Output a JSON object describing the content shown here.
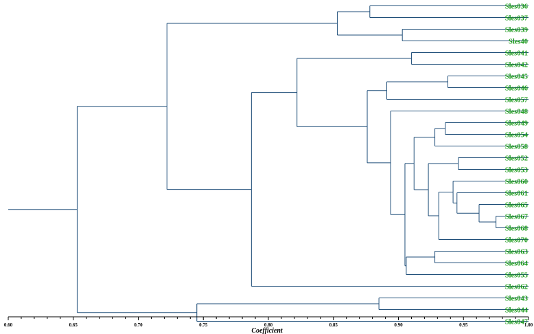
{
  "colors": {
    "branch": "#1f4e79",
    "label": "#1a9a1a",
    "axis": "#000000",
    "background": "#ffffff"
  },
  "axis": {
    "title": "Coefficient",
    "min": 0.6,
    "max": 1.0,
    "ticks": [
      "0.60",
      "0.65",
      "0.70",
      "0.75",
      "0.80",
      "0.85",
      "0.90",
      "0.95",
      "1.00"
    ],
    "minor_step": 0.01
  },
  "chart_data": {
    "type": "dendrogram",
    "title": "",
    "xlabel": "Coefficient",
    "xlim": [
      0.6,
      1.0
    ],
    "leaves": [
      "Sles036",
      "Sles037",
      "Sles039",
      "Sles40",
      "Sles041",
      "Sles042",
      "Sles045",
      "Sles046",
      "Sles057",
      "Sles048",
      "Sles049",
      "Sles054",
      "Sles058",
      "Sles052",
      "Sles053",
      "Sles060",
      "Sles061",
      "Sles065",
      "Sles067",
      "Sles068",
      "Sles070",
      "Sles063",
      "Sles064",
      "Sles055",
      "Sles062",
      "Sles043",
      "Sles044",
      "Sles047"
    ],
    "tree": {
      "h": 0.653,
      "children": [
        {
          "h": 0.722,
          "children": [
            {
              "h": 0.853,
              "children": [
                {
                  "h": 0.878,
                  "children": [
                    {
                      "leaf": "Sles036"
                    },
                    {
                      "leaf": "Sles037"
                    }
                  ]
                },
                {
                  "h": 0.903,
                  "children": [
                    {
                      "leaf": "Sles039"
                    },
                    {
                      "leaf": "Sles40"
                    }
                  ]
                }
              ]
            },
            {
              "h": 0.787,
              "children": [
                {
                  "h": 0.822,
                  "children": [
                    {
                      "h": 0.91,
                      "children": [
                        {
                          "leaf": "Sles041"
                        },
                        {
                          "leaf": "Sles042"
                        }
                      ]
                    },
                    {
                      "h": 0.876,
                      "children": [
                        {
                          "h": 0.891,
                          "children": [
                            {
                              "h": 0.938,
                              "children": [
                                {
                                  "leaf": "Sles045"
                                },
                                {
                                  "leaf": "Sles046"
                                }
                              ]
                            },
                            {
                              "leaf": "Sles057"
                            }
                          ]
                        },
                        {
                          "h": 0.894,
                          "children": [
                            {
                              "leaf": "Sles048"
                            },
                            {
                              "h": 0.905,
                              "children": [
                                {
                                  "h": 0.912,
                                  "children": [
                                    {
                                      "h": 0.928,
                                      "children": [
                                        {
                                          "h": 0.936,
                                          "children": [
                                            {
                                              "leaf": "Sles049"
                                            },
                                            {
                                              "leaf": "Sles054"
                                            }
                                          ]
                                        },
                                        {
                                          "leaf": "Sles058"
                                        }
                                      ]
                                    },
                                    {
                                      "h": 0.923,
                                      "children": [
                                        {
                                          "h": 0.946,
                                          "children": [
                                            {
                                              "leaf": "Sles052"
                                            },
                                            {
                                              "leaf": "Sles053"
                                            }
                                          ]
                                        },
                                        {
                                          "h": 0.931,
                                          "children": [
                                            {
                                              "h": 0.942,
                                              "children": [
                                                {
                                                  "leaf": "Sles060"
                                                },
                                                {
                                                  "h": 0.945,
                                                  "children": [
                                                    {
                                                      "leaf": "Sles061"
                                                    },
                                                    {
                                                      "h": 0.962,
                                                      "children": [
                                                        {
                                                          "leaf": "Sles065"
                                                        },
                                                        {
                                                          "h": 0.975,
                                                          "children": [
                                                            {
                                                              "leaf": "Sles067"
                                                            },
                                                            {
                                                              "leaf": "Sles068"
                                                            }
                                                          ]
                                                        }
                                                      ]
                                                    }
                                                  ]
                                                }
                                              ]
                                            },
                                            {
                                              "leaf": "Sles070"
                                            }
                                          ]
                                        }
                                      ]
                                    }
                                  ]
                                },
                                {
                                  "h": 0.906,
                                  "children": [
                                    {
                                      "h": 0.928,
                                      "children": [
                                        {
                                          "leaf": "Sles063"
                                        },
                                        {
                                          "leaf": "Sles064"
                                        }
                                      ]
                                    },
                                    {
                                      "leaf": "Sles055"
                                    }
                                  ]
                                }
                              ]
                            }
                          ]
                        }
                      ]
                    }
                  ]
                },
                {
                  "leaf": "Sles062"
                }
              ]
            }
          ]
        },
        {
          "h": 0.745,
          "children": [
            {
              "h": 0.885,
              "children": [
                {
                  "leaf": "Sles043"
                },
                {
                  "leaf": "Sles044"
                }
              ]
            },
            {
              "leaf": "Sles047"
            }
          ]
        }
      ]
    }
  }
}
